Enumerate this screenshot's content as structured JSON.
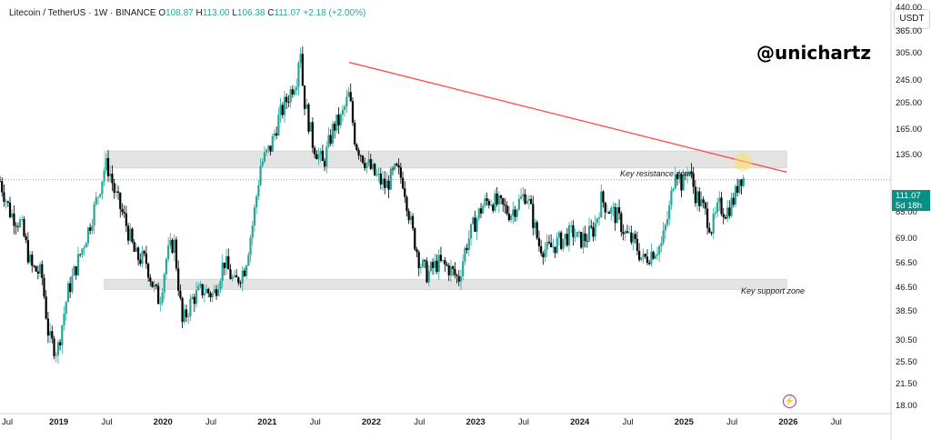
{
  "header": {
    "symbol": "Litecoin / TetherUS · 1W · BINANCE",
    "o_label": "O",
    "o_value": "108.87",
    "h_label": "H",
    "h_value": "113.00",
    "l_label": "L",
    "l_value": "106.38",
    "c_label": "C",
    "c_value": "111.07",
    "change": "+2.18 (+2.00%)"
  },
  "watermark": "@unichartz",
  "currency_button": "USDT",
  "price_tag": {
    "price": "111.07",
    "countdown": "5d 18h"
  },
  "colors": {
    "up": "#26a69a",
    "down": "#000000",
    "trendline": "#ff4d4d",
    "zone": "#d9d9d9",
    "highlight": "#ffe066",
    "price_line": "#26a69a"
  },
  "chart_data": {
    "type": "candlestick",
    "y_scale": "log",
    "ylim": [
      17,
      470
    ],
    "yticks": [
      "440.00",
      "365.00",
      "305.00",
      "245.00",
      "205.00",
      "165.00",
      "135.00",
      "85.00",
      "69.00",
      "56.50",
      "46.50",
      "38.50",
      "30.50",
      "25.50",
      "21.50",
      "18.00"
    ],
    "ytick_values": [
      440,
      365,
      305,
      245,
      205,
      165,
      135,
      85,
      69,
      56.5,
      46.5,
      38.5,
      30.5,
      25.5,
      21.5,
      18
    ],
    "xticks": [
      {
        "label": "Jul",
        "t": 2018.5,
        "year": false
      },
      {
        "label": "2019",
        "t": 2019.0,
        "year": true
      },
      {
        "label": "Jul",
        "t": 2019.5,
        "year": false
      },
      {
        "label": "2020",
        "t": 2020.0,
        "year": true
      },
      {
        "label": "Jul",
        "t": 2020.5,
        "year": false
      },
      {
        "label": "2021",
        "t": 2021.0,
        "year": true
      },
      {
        "label": "Jul",
        "t": 2021.5,
        "year": false
      },
      {
        "label": "2022",
        "t": 2022.0,
        "year": true
      },
      {
        "label": "Jul",
        "t": 2022.5,
        "year": false
      },
      {
        "label": "2023",
        "t": 2023.0,
        "year": true
      },
      {
        "label": "Jul",
        "t": 2023.5,
        "year": false
      },
      {
        "label": "2024",
        "t": 2024.0,
        "year": true
      },
      {
        "label": "Jul",
        "t": 2024.5,
        "year": false
      },
      {
        "label": "2025",
        "t": 2025.0,
        "year": true
      },
      {
        "label": "Jul",
        "t": 2025.5,
        "year": false
      },
      {
        "label": "2026",
        "t": 2026.0,
        "year": true
      },
      {
        "label": "Jul",
        "t": 2026.5,
        "year": false
      }
    ],
    "xlim": [
      2018.45,
      2027.0
    ],
    "close_path": [
      [
        2018.45,
        110
      ],
      [
        2018.55,
        85
      ],
      [
        2018.65,
        78
      ],
      [
        2018.75,
        55
      ],
      [
        2018.85,
        52
      ],
      [
        2018.92,
        31
      ],
      [
        2019.0,
        28
      ],
      [
        2019.1,
        45
      ],
      [
        2019.2,
        58
      ],
      [
        2019.3,
        75
      ],
      [
        2019.38,
        95
      ],
      [
        2019.46,
        125
      ],
      [
        2019.5,
        120
      ],
      [
        2019.55,
        100
      ],
      [
        2019.65,
        80
      ],
      [
        2019.75,
        60
      ],
      [
        2019.85,
        58
      ],
      [
        2019.92,
        47
      ],
      [
        2019.98,
        42
      ],
      [
        2020.05,
        60
      ],
      [
        2020.12,
        68
      ],
      [
        2020.2,
        35
      ],
      [
        2020.3,
        43
      ],
      [
        2020.4,
        46
      ],
      [
        2020.5,
        44
      ],
      [
        2020.6,
        58
      ],
      [
        2020.7,
        48
      ],
      [
        2020.8,
        55
      ],
      [
        2020.88,
        80
      ],
      [
        2020.95,
        125
      ],
      [
        2021.05,
        145
      ],
      [
        2021.12,
        180
      ],
      [
        2021.2,
        210
      ],
      [
        2021.3,
        255
      ],
      [
        2021.33,
        340
      ],
      [
        2021.36,
        220
      ],
      [
        2021.45,
        150
      ],
      [
        2021.55,
        125
      ],
      [
        2021.65,
        170
      ],
      [
        2021.72,
        180
      ],
      [
        2021.8,
        220
      ],
      [
        2021.86,
        150
      ],
      [
        2021.95,
        130
      ],
      [
        2022.05,
        115
      ],
      [
        2022.15,
        105
      ],
      [
        2022.25,
        120
      ],
      [
        2022.32,
        110
      ],
      [
        2022.4,
        75
      ],
      [
        2022.48,
        57
      ],
      [
        2022.55,
        52
      ],
      [
        2022.65,
        57
      ],
      [
        2022.75,
        55
      ],
      [
        2022.85,
        50
      ],
      [
        2022.92,
        65
      ],
      [
        2023.0,
        78
      ],
      [
        2023.08,
        90
      ],
      [
        2023.15,
        95
      ],
      [
        2023.25,
        90
      ],
      [
        2023.35,
        85
      ],
      [
        2023.45,
        95
      ],
      [
        2023.5,
        100
      ],
      [
        2023.55,
        85
      ],
      [
        2023.62,
        66
      ],
      [
        2023.7,
        63
      ],
      [
        2023.8,
        67
      ],
      [
        2023.88,
        70
      ],
      [
        2023.95,
        73
      ],
      [
        2024.0,
        68
      ],
      [
        2024.08,
        70
      ],
      [
        2024.15,
        75
      ],
      [
        2024.22,
        95
      ],
      [
        2024.3,
        87
      ],
      [
        2024.38,
        82
      ],
      [
        2024.45,
        72
      ],
      [
        2024.55,
        66
      ],
      [
        2024.62,
        58
      ],
      [
        2024.7,
        62
      ],
      [
        2024.8,
        66
      ],
      [
        2024.88,
        90
      ],
      [
        2024.93,
        125
      ],
      [
        2025.0,
        105
      ],
      [
        2025.05,
        125
      ],
      [
        2025.12,
        100
      ],
      [
        2025.2,
        88
      ],
      [
        2025.28,
        75
      ],
      [
        2025.35,
        90
      ],
      [
        2025.42,
        86
      ],
      [
        2025.5,
        96
      ],
      [
        2025.55,
        115
      ],
      [
        2025.6,
        111.07
      ]
    ],
    "trendline": {
      "start": [
        2021.8,
        285
      ],
      "end": [
        2026.0,
        118
      ]
    },
    "zones": [
      {
        "name": "Key resistance zone",
        "low": 122,
        "high": 140,
        "from": 2019.45,
        "to": 2026.0
      },
      {
        "name": "Key support zone",
        "low": 46,
        "high": 50,
        "from": 2019.45,
        "to": 2026.0
      }
    ],
    "highlight_point": [
      2025.58,
      128
    ],
    "last_price": 111.07
  }
}
